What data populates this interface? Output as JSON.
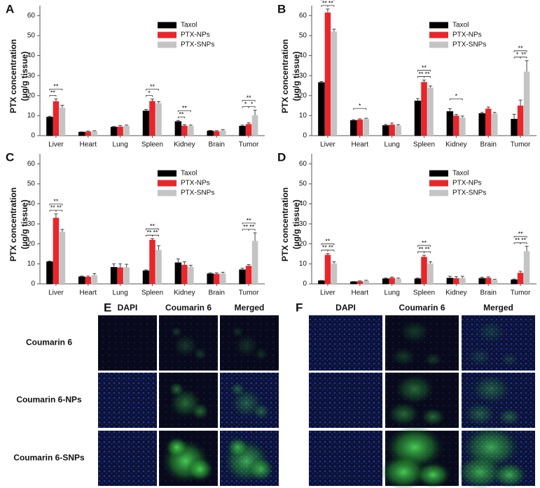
{
  "chart_data": [
    {
      "type": "bar",
      "label": "A",
      "ylabel": [
        "PTX concentration",
        "(µg/g tissue)"
      ],
      "categories": [
        "Liver",
        "Heart",
        "Lung",
        "Spleen",
        "Kidney",
        "Brain",
        "Tumor"
      ],
      "series": [
        {
          "name": "Taxol",
          "color": "#000000",
          "values": [
            9.2,
            1.7,
            4.2,
            12.3,
            7,
            2.3,
            4.7
          ],
          "errors": [
            0.5,
            0.2,
            0.4,
            0.8,
            0.6,
            0.3,
            0.6
          ]
        },
        {
          "name": "PTX-NPs",
          "color": "#e8262b",
          "values": [
            17.2,
            2,
            4.5,
            17.3,
            5,
            2.2,
            5.8
          ],
          "errors": [
            1.2,
            0.3,
            0.6,
            1,
            0.5,
            0.3,
            0.6
          ]
        },
        {
          "name": "PTX-SNPs",
          "color": "#c4c4c4",
          "values": [
            14,
            2.2,
            4.8,
            16.2,
            4.8,
            2.6,
            10.2
          ],
          "errors": [
            1.2,
            0.3,
            0.5,
            0.8,
            0.5,
            0.4,
            2.5
          ]
        }
      ],
      "ylim": [
        0,
        65
      ],
      "yticks": [
        0,
        10,
        20,
        30,
        40,
        50,
        60
      ],
      "legend": "upper right",
      "annotations": [
        {
          "text": "**",
          "category": "Liver",
          "pair": [
            "Taxol",
            "PTX-SNPs"
          ]
        },
        {
          "text": "**",
          "category": "Liver",
          "pair": [
            "Taxol",
            "PTX-NPs"
          ]
        },
        {
          "text": "**",
          "category": "Spleen",
          "pair": [
            "Taxol",
            "PTX-SNPs"
          ]
        },
        {
          "text": "*",
          "category": "Spleen",
          "pair": [
            "Taxol",
            "PTX-NPs"
          ]
        },
        {
          "text": "**",
          "category": "Kidney",
          "pair": [
            "Taxol",
            "PTX-SNPs"
          ]
        },
        {
          "text": "**",
          "category": "Kidney",
          "pair": [
            "Taxol",
            "PTX-NPs"
          ]
        },
        {
          "text": "**",
          "category": "Tumor",
          "pair": [
            "Taxol",
            "PTX-SNPs"
          ]
        },
        {
          "text": "*",
          "category": "Tumor",
          "pair": [
            "Taxol",
            "PTX-NPs"
          ]
        },
        {
          "text": "*",
          "category": "Tumor",
          "pair": [
            "PTX-NPs",
            "PTX-SNPs"
          ]
        }
      ]
    },
    {
      "type": "bar",
      "label": "B",
      "ylabel": [
        "PTX concentration",
        "(µg/g tissue)"
      ],
      "categories": [
        "Liver",
        "Heart",
        "Lung",
        "Spleen",
        "Kidney",
        "Brain",
        "Tumor"
      ],
      "series": [
        {
          "name": "Taxol",
          "color": "#000000",
          "values": [
            26.5,
            7.5,
            5,
            17.3,
            12,
            11,
            8.2
          ],
          "errors": [
            0.6,
            0.5,
            0.6,
            1.2,
            1.5,
            0.6,
            2.5
          ]
        },
        {
          "name": "PTX-NPs",
          "color": "#e8262b",
          "values": [
            61.5,
            8,
            5.5,
            26.8,
            10,
            13.5,
            15
          ],
          "errors": [
            1.8,
            0.4,
            0.8,
            1,
            0.6,
            0.8,
            2.8
          ]
        },
        {
          "name": "PTX-SNPs",
          "color": "#c4c4c4",
          "values": [
            52,
            8.3,
            5,
            24,
            9,
            11,
            32
          ],
          "errors": [
            1.2,
            0.4,
            0.5,
            0.8,
            0.8,
            0.6,
            5.5
          ]
        }
      ],
      "ylim": [
        0,
        65
      ],
      "yticks": [
        0,
        10,
        20,
        30,
        40,
        50,
        60
      ],
      "legend": "upper right",
      "annotations": [
        {
          "text": "**",
          "category": "Liver",
          "pair": [
            "Taxol",
            "PTX-SNPs"
          ]
        },
        {
          "text": "**",
          "category": "Liver",
          "pair": [
            "Taxol",
            "PTX-NPs"
          ]
        },
        {
          "text": "**",
          "category": "Liver",
          "pair": [
            "PTX-NPs",
            "PTX-SNPs"
          ]
        },
        {
          "text": "*",
          "category": "Heart",
          "pair": [
            "Taxol",
            "PTX-SNPs"
          ]
        },
        {
          "text": "**",
          "category": "Spleen",
          "pair": [
            "Taxol",
            "PTX-SNPs"
          ]
        },
        {
          "text": "**",
          "category": "Spleen",
          "pair": [
            "Taxol",
            "PTX-NPs"
          ]
        },
        {
          "text": "**",
          "category": "Spleen",
          "pair": [
            "PTX-NPs",
            "PTX-SNPs"
          ]
        },
        {
          "text": "*",
          "category": "Kidney",
          "pair": [
            "Taxol",
            "PTX-SNPs"
          ]
        },
        {
          "text": "**",
          "category": "Tumor",
          "pair": [
            "Taxol",
            "PTX-SNPs"
          ]
        },
        {
          "text": "*",
          "category": "Tumor",
          "pair": [
            "Taxol",
            "PTX-NPs"
          ]
        },
        {
          "text": "**",
          "category": "Tumor",
          "pair": [
            "PTX-NPs",
            "PTX-SNPs"
          ]
        }
      ]
    },
    {
      "type": "bar",
      "label": "C",
      "ylabel": [
        "PTX concentration",
        "(µg/g tissue)"
      ],
      "categories": [
        "Liver",
        "Heart",
        "Lung",
        "Spleen",
        "Kidney",
        "Brain",
        "Tumor"
      ],
      "series": [
        {
          "name": "Taxol",
          "color": "#000000",
          "values": [
            11,
            3.5,
            8.2,
            6.5,
            10.5,
            5,
            7
          ],
          "errors": [
            0.4,
            0.4,
            1.8,
            0.5,
            2,
            0.5,
            0.8
          ]
        },
        {
          "name": "PTX-NPs",
          "color": "#e8262b",
          "values": [
            33,
            3.5,
            8.2,
            22,
            9.5,
            5,
            9
          ],
          "errors": [
            2,
            0.4,
            1.8,
            0.6,
            1.5,
            0.5,
            0.6
          ]
        },
        {
          "name": "PTX-SNPs",
          "color": "#c4c4c4",
          "values": [
            26,
            4.3,
            8.3,
            17,
            8.5,
            5.2,
            21.5
          ],
          "errors": [
            1.2,
            0.8,
            1.5,
            2,
            0.8,
            0.6,
            4
          ]
        }
      ],
      "ylim": [
        0,
        65
      ],
      "yticks": [
        0,
        10,
        20,
        30,
        40,
        50,
        60
      ],
      "legend": "upper right",
      "annotations": [
        {
          "text": "**",
          "category": "Liver",
          "pair": [
            "Taxol",
            "PTX-SNPs"
          ]
        },
        {
          "text": "**",
          "category": "Liver",
          "pair": [
            "Taxol",
            "PTX-NPs"
          ]
        },
        {
          "text": "**",
          "category": "Liver",
          "pair": [
            "PTX-NPs",
            "PTX-SNPs"
          ]
        },
        {
          "text": "**",
          "category": "Spleen",
          "pair": [
            "Taxol",
            "PTX-SNPs"
          ]
        },
        {
          "text": "**",
          "category": "Spleen",
          "pair": [
            "Taxol",
            "PTX-NPs"
          ]
        },
        {
          "text": "**",
          "category": "Spleen",
          "pair": [
            "PTX-NPs",
            "PTX-SNPs"
          ]
        },
        {
          "text": "**",
          "category": "Tumor",
          "pair": [
            "Taxol",
            "PTX-SNPs"
          ]
        },
        {
          "text": "**",
          "category": "Tumor",
          "pair": [
            "Taxol",
            "PTX-NPs"
          ]
        },
        {
          "text": "**",
          "category": "Tumor",
          "pair": [
            "PTX-NPs",
            "PTX-SNPs"
          ]
        }
      ]
    },
    {
      "type": "bar",
      "label": "D",
      "ylabel": [
        "PTX concentration",
        "(µg/g tissue)"
      ],
      "categories": [
        "Liver",
        "Heart",
        "Lung",
        "Spleen",
        "Kidney",
        "Brain",
        "Tumor"
      ],
      "series": [
        {
          "name": "Taxol",
          "color": "#000000",
          "values": [
            1.5,
            1,
            2.5,
            2.5,
            2.8,
            2.7,
            2
          ],
          "errors": [
            0.2,
            0.2,
            0.4,
            0.4,
            1,
            0.6,
            0.4
          ]
        },
        {
          "name": "PTX-NPs",
          "color": "#e8262b",
          "values": [
            14.5,
            1.3,
            3,
            13.5,
            2.8,
            3,
            5.5
          ],
          "errors": [
            0.6,
            0.2,
            0.4,
            0.8,
            0.8,
            0.5,
            0.8
          ]
        },
        {
          "name": "PTX-SNPs",
          "color": "#c4c4c4",
          "values": [
            10.2,
            1.5,
            2.5,
            10.2,
            3,
            2,
            16.3
          ],
          "errors": [
            0.8,
            0.3,
            0.4,
            0.8,
            0.8,
            0.3,
            2.5
          ]
        }
      ],
      "ylim": [
        0,
        65
      ],
      "yticks": [
        0,
        10,
        20,
        30,
        40,
        50,
        60
      ],
      "legend": "upper right",
      "annotations": [
        {
          "text": "**",
          "category": "Liver",
          "pair": [
            "Taxol",
            "PTX-SNPs"
          ]
        },
        {
          "text": "**",
          "category": "Liver",
          "pair": [
            "Taxol",
            "PTX-NPs"
          ]
        },
        {
          "text": "**",
          "category": "Liver",
          "pair": [
            "PTX-NPs",
            "PTX-SNPs"
          ]
        },
        {
          "text": "**",
          "category": "Spleen",
          "pair": [
            "Taxol",
            "PTX-SNPs"
          ]
        },
        {
          "text": "**",
          "category": "Spleen",
          "pair": [
            "Taxol",
            "PTX-NPs"
          ]
        },
        {
          "text": "**",
          "category": "Spleen",
          "pair": [
            "PTX-NPs",
            "PTX-SNPs"
          ]
        },
        {
          "text": "**",
          "category": "Tumor",
          "pair": [
            "Taxol",
            "PTX-SNPs"
          ]
        },
        {
          "text": "**",
          "category": "Tumor",
          "pair": [
            "Taxol",
            "PTX-NPs"
          ]
        },
        {
          "text": "**",
          "category": "Tumor",
          "pair": [
            "PTX-NPs",
            "PTX-SNPs"
          ]
        }
      ]
    }
  ],
  "image_panels": [
    {
      "label": "E",
      "column_headers": [
        "DAPI",
        "Coumarin 6",
        "Merged"
      ],
      "row_labels": [
        "Coumarin 6",
        "Coumarin 6-NPs",
        "Coumarin 6-SNPs"
      ]
    },
    {
      "label": "F",
      "column_headers": [
        "DAPI",
        "Coumarin 6",
        "Merged"
      ]
    }
  ]
}
